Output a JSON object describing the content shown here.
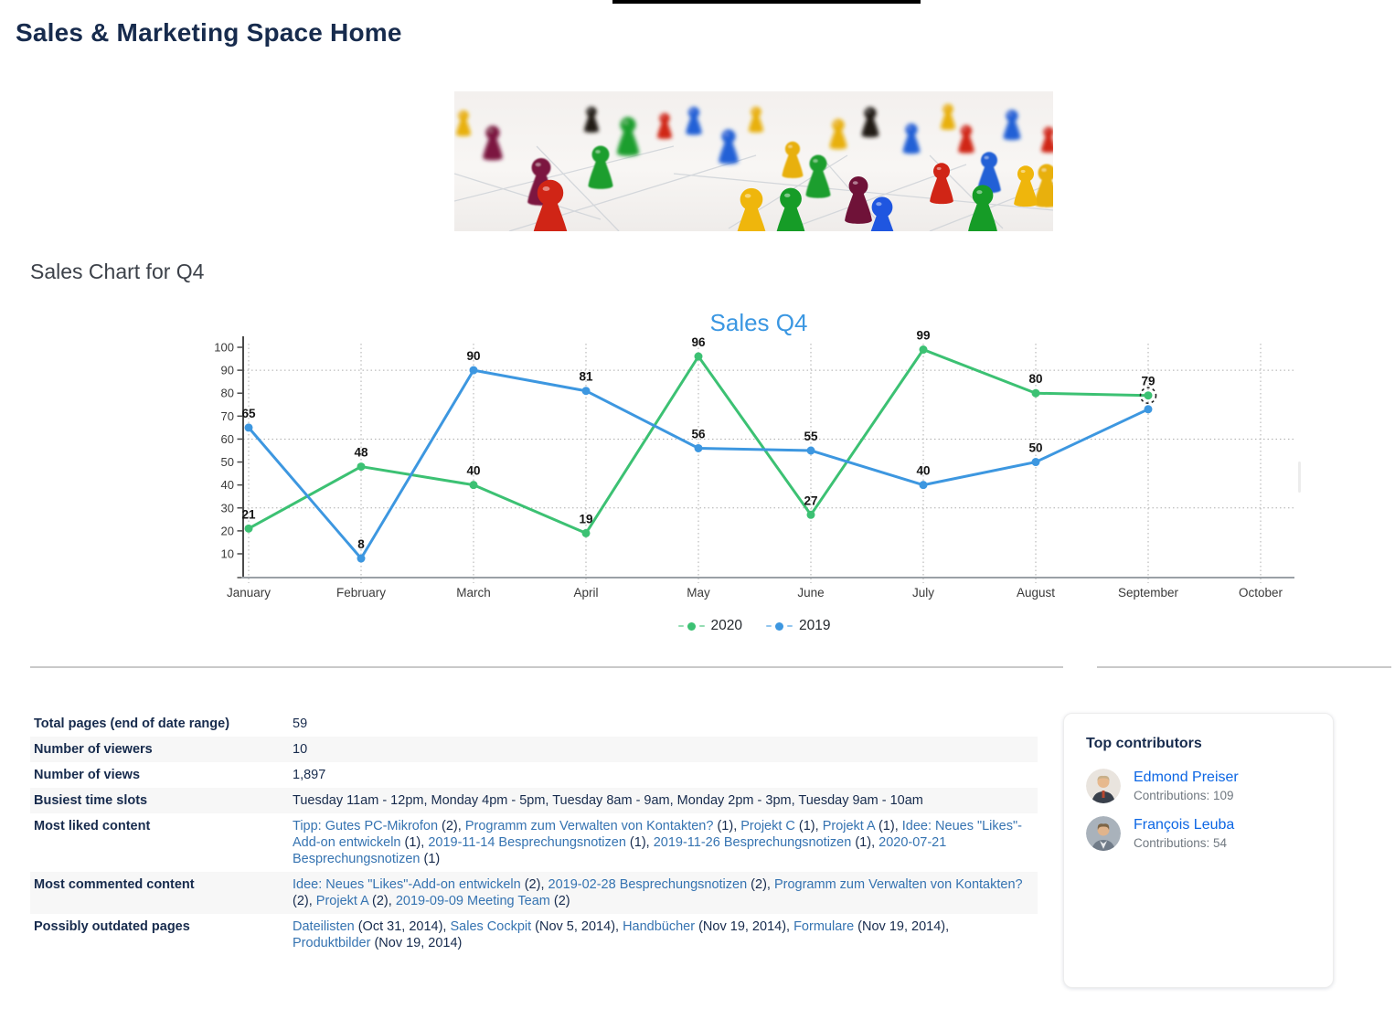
{
  "page": {
    "title": "Sales & Marketing Space Home"
  },
  "sections": {
    "chart_heading": "Sales Chart for Q4"
  },
  "colors": {
    "accent_blue": "#3b97e2",
    "series_2020": "#3cc173",
    "series_2019": "#3d97e0",
    "table_link": "#3573b1",
    "contributor_link": "#0c66e4",
    "heading_navy": "#172b4d"
  },
  "chart_data": {
    "type": "line",
    "title": "Sales Q4",
    "categories": [
      "January",
      "February",
      "March",
      "April",
      "May",
      "June",
      "July",
      "August",
      "September",
      "October"
    ],
    "series": [
      {
        "name": "2020",
        "color": "#3cc173",
        "values": [
          21,
          48,
          40,
          19,
          96,
          27,
          99,
          80,
          79
        ],
        "selected_point_index": 8,
        "hidden_label_indices": []
      },
      {
        "name": "2019",
        "color": "#3d97e0",
        "values": [
          65,
          8,
          90,
          81,
          56,
          55,
          40,
          50,
          73
        ],
        "selected_point_index": -1,
        "hidden_label_indices": [
          8
        ]
      }
    ],
    "ylim": [
      0,
      100
    ],
    "yticks": [
      10,
      20,
      30,
      40,
      50,
      60,
      70,
      80,
      90,
      100
    ],
    "grid": {
      "h_values": [
        30,
        60,
        90
      ],
      "v_every_category": true
    },
    "legend_position": "bottom"
  },
  "main": {
    "table": {
      "rows": [
        {
          "label": "Total pages (end of date range)",
          "segments": [
            {
              "t": "59"
            }
          ]
        },
        {
          "label": "Number of viewers",
          "segments": [
            {
              "t": "10"
            }
          ]
        },
        {
          "label": "Number of views",
          "segments": [
            {
              "t": "1,897"
            }
          ]
        },
        {
          "label": "Busiest time slots",
          "segments": [
            {
              "t": "Tuesday 11am - 12pm, Monday 4pm - 5pm, Tuesday 8am - 9am, Monday 2pm - 3pm, Tuesday 9am - 10am"
            }
          ]
        },
        {
          "label": "Most liked content",
          "segments": [
            {
              "t": "Tipp: Gutes PC-Mikrofon",
              "link": true
            },
            {
              "t": " (2),  "
            },
            {
              "t": "Programm zum Verwalten von Kontakten?",
              "link": true
            },
            {
              "t": " (1),  "
            },
            {
              "t": "Projekt C",
              "link": true
            },
            {
              "t": " (1),  "
            },
            {
              "t": "Projekt A",
              "link": true
            },
            {
              "t": " (1),  "
            },
            {
              "t": "Idee: Neues \"Likes\"-Add-on entwickeln",
              "link": true
            },
            {
              "t": " (1),  "
            },
            {
              "t": "2019-11-14 Besprechungsnotizen",
              "link": true
            },
            {
              "t": " (1),  "
            },
            {
              "t": "2019-11-26 Besprechungsnotizen",
              "link": true
            },
            {
              "t": " (1),  "
            },
            {
              "t": "2020-07-21 Besprechungsnotizen",
              "link": true
            },
            {
              "t": " (1)"
            }
          ]
        },
        {
          "label": "Most commented content",
          "segments": [
            {
              "t": "Idee: Neues \"Likes\"-Add-on entwickeln",
              "link": true
            },
            {
              "t": " (2),  "
            },
            {
              "t": "2019-02-28 Besprechungsnotizen",
              "link": true
            },
            {
              "t": " (2),  "
            },
            {
              "t": "Programm zum Verwalten von Kontakten?",
              "link": true
            },
            {
              "t": " (2),  "
            },
            {
              "t": "Projekt A",
              "link": true
            },
            {
              "t": " (2),  "
            },
            {
              "t": "2019-09-09 Meeting Team",
              "link": true
            },
            {
              "t": " (2)"
            }
          ]
        },
        {
          "label": "Possibly outdated pages",
          "segments": [
            {
              "t": "Dateilisten",
              "link": true
            },
            {
              "t": " (Oct 31, 2014),  "
            },
            {
              "t": "Sales Cockpit",
              "link": true
            },
            {
              "t": " (Nov 5, 2014),  "
            },
            {
              "t": "Handbücher",
              "link": true
            },
            {
              "t": " (Nov 19, 2014),  "
            },
            {
              "t": "Formulare",
              "link": true
            },
            {
              "t": " (Nov 19, 2014),  "
            },
            {
              "t": "Produktbilder",
              "link": true
            },
            {
              "t": " (Nov 19, 2014)"
            }
          ]
        }
      ]
    }
  },
  "sidebar_card": {
    "title": "Top contributors",
    "contributors": [
      {
        "name": "Edmond Preiser",
        "contributions": "Contributions: 109"
      },
      {
        "name": "François Leuba",
        "contributions": "Contributions: 54"
      }
    ]
  }
}
